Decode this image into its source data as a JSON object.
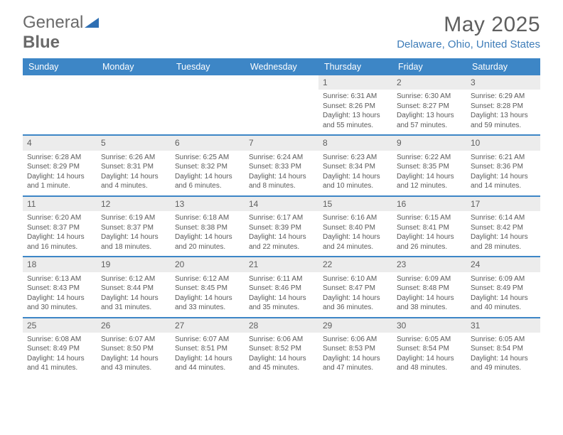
{
  "brand": {
    "part1": "General",
    "part2": "Blue"
  },
  "title": "May 2025",
  "location": "Delaware, Ohio, United States",
  "colors": {
    "header_bg": "#3d86c6",
    "header_text": "#ffffff",
    "daynum_bg": "#ececec",
    "text_muted": "#5f5f5f",
    "location_color": "#3d7cb8"
  },
  "day_labels": [
    "Sunday",
    "Monday",
    "Tuesday",
    "Wednesday",
    "Thursday",
    "Friday",
    "Saturday"
  ],
  "weeks": [
    [
      {
        "n": "",
        "sr": "",
        "ss": "",
        "dl": ""
      },
      {
        "n": "",
        "sr": "",
        "ss": "",
        "dl": ""
      },
      {
        "n": "",
        "sr": "",
        "ss": "",
        "dl": ""
      },
      {
        "n": "",
        "sr": "",
        "ss": "",
        "dl": ""
      },
      {
        "n": "1",
        "sr": "Sunrise: 6:31 AM",
        "ss": "Sunset: 8:26 PM",
        "dl": "Daylight: 13 hours and 55 minutes."
      },
      {
        "n": "2",
        "sr": "Sunrise: 6:30 AM",
        "ss": "Sunset: 8:27 PM",
        "dl": "Daylight: 13 hours and 57 minutes."
      },
      {
        "n": "3",
        "sr": "Sunrise: 6:29 AM",
        "ss": "Sunset: 8:28 PM",
        "dl": "Daylight: 13 hours and 59 minutes."
      }
    ],
    [
      {
        "n": "4",
        "sr": "Sunrise: 6:28 AM",
        "ss": "Sunset: 8:29 PM",
        "dl": "Daylight: 14 hours and 1 minute."
      },
      {
        "n": "5",
        "sr": "Sunrise: 6:26 AM",
        "ss": "Sunset: 8:31 PM",
        "dl": "Daylight: 14 hours and 4 minutes."
      },
      {
        "n": "6",
        "sr": "Sunrise: 6:25 AM",
        "ss": "Sunset: 8:32 PM",
        "dl": "Daylight: 14 hours and 6 minutes."
      },
      {
        "n": "7",
        "sr": "Sunrise: 6:24 AM",
        "ss": "Sunset: 8:33 PM",
        "dl": "Daylight: 14 hours and 8 minutes."
      },
      {
        "n": "8",
        "sr": "Sunrise: 6:23 AM",
        "ss": "Sunset: 8:34 PM",
        "dl": "Daylight: 14 hours and 10 minutes."
      },
      {
        "n": "9",
        "sr": "Sunrise: 6:22 AM",
        "ss": "Sunset: 8:35 PM",
        "dl": "Daylight: 14 hours and 12 minutes."
      },
      {
        "n": "10",
        "sr": "Sunrise: 6:21 AM",
        "ss": "Sunset: 8:36 PM",
        "dl": "Daylight: 14 hours and 14 minutes."
      }
    ],
    [
      {
        "n": "11",
        "sr": "Sunrise: 6:20 AM",
        "ss": "Sunset: 8:37 PM",
        "dl": "Daylight: 14 hours and 16 minutes."
      },
      {
        "n": "12",
        "sr": "Sunrise: 6:19 AM",
        "ss": "Sunset: 8:37 PM",
        "dl": "Daylight: 14 hours and 18 minutes."
      },
      {
        "n": "13",
        "sr": "Sunrise: 6:18 AM",
        "ss": "Sunset: 8:38 PM",
        "dl": "Daylight: 14 hours and 20 minutes."
      },
      {
        "n": "14",
        "sr": "Sunrise: 6:17 AM",
        "ss": "Sunset: 8:39 PM",
        "dl": "Daylight: 14 hours and 22 minutes."
      },
      {
        "n": "15",
        "sr": "Sunrise: 6:16 AM",
        "ss": "Sunset: 8:40 PM",
        "dl": "Daylight: 14 hours and 24 minutes."
      },
      {
        "n": "16",
        "sr": "Sunrise: 6:15 AM",
        "ss": "Sunset: 8:41 PM",
        "dl": "Daylight: 14 hours and 26 minutes."
      },
      {
        "n": "17",
        "sr": "Sunrise: 6:14 AM",
        "ss": "Sunset: 8:42 PM",
        "dl": "Daylight: 14 hours and 28 minutes."
      }
    ],
    [
      {
        "n": "18",
        "sr": "Sunrise: 6:13 AM",
        "ss": "Sunset: 8:43 PM",
        "dl": "Daylight: 14 hours and 30 minutes."
      },
      {
        "n": "19",
        "sr": "Sunrise: 6:12 AM",
        "ss": "Sunset: 8:44 PM",
        "dl": "Daylight: 14 hours and 31 minutes."
      },
      {
        "n": "20",
        "sr": "Sunrise: 6:12 AM",
        "ss": "Sunset: 8:45 PM",
        "dl": "Daylight: 14 hours and 33 minutes."
      },
      {
        "n": "21",
        "sr": "Sunrise: 6:11 AM",
        "ss": "Sunset: 8:46 PM",
        "dl": "Daylight: 14 hours and 35 minutes."
      },
      {
        "n": "22",
        "sr": "Sunrise: 6:10 AM",
        "ss": "Sunset: 8:47 PM",
        "dl": "Daylight: 14 hours and 36 minutes."
      },
      {
        "n": "23",
        "sr": "Sunrise: 6:09 AM",
        "ss": "Sunset: 8:48 PM",
        "dl": "Daylight: 14 hours and 38 minutes."
      },
      {
        "n": "24",
        "sr": "Sunrise: 6:09 AM",
        "ss": "Sunset: 8:49 PM",
        "dl": "Daylight: 14 hours and 40 minutes."
      }
    ],
    [
      {
        "n": "25",
        "sr": "Sunrise: 6:08 AM",
        "ss": "Sunset: 8:49 PM",
        "dl": "Daylight: 14 hours and 41 minutes."
      },
      {
        "n": "26",
        "sr": "Sunrise: 6:07 AM",
        "ss": "Sunset: 8:50 PM",
        "dl": "Daylight: 14 hours and 43 minutes."
      },
      {
        "n": "27",
        "sr": "Sunrise: 6:07 AM",
        "ss": "Sunset: 8:51 PM",
        "dl": "Daylight: 14 hours and 44 minutes."
      },
      {
        "n": "28",
        "sr": "Sunrise: 6:06 AM",
        "ss": "Sunset: 8:52 PM",
        "dl": "Daylight: 14 hours and 45 minutes."
      },
      {
        "n": "29",
        "sr": "Sunrise: 6:06 AM",
        "ss": "Sunset: 8:53 PM",
        "dl": "Daylight: 14 hours and 47 minutes."
      },
      {
        "n": "30",
        "sr": "Sunrise: 6:05 AM",
        "ss": "Sunset: 8:54 PM",
        "dl": "Daylight: 14 hours and 48 minutes."
      },
      {
        "n": "31",
        "sr": "Sunrise: 6:05 AM",
        "ss": "Sunset: 8:54 PM",
        "dl": "Daylight: 14 hours and 49 minutes."
      }
    ]
  ]
}
